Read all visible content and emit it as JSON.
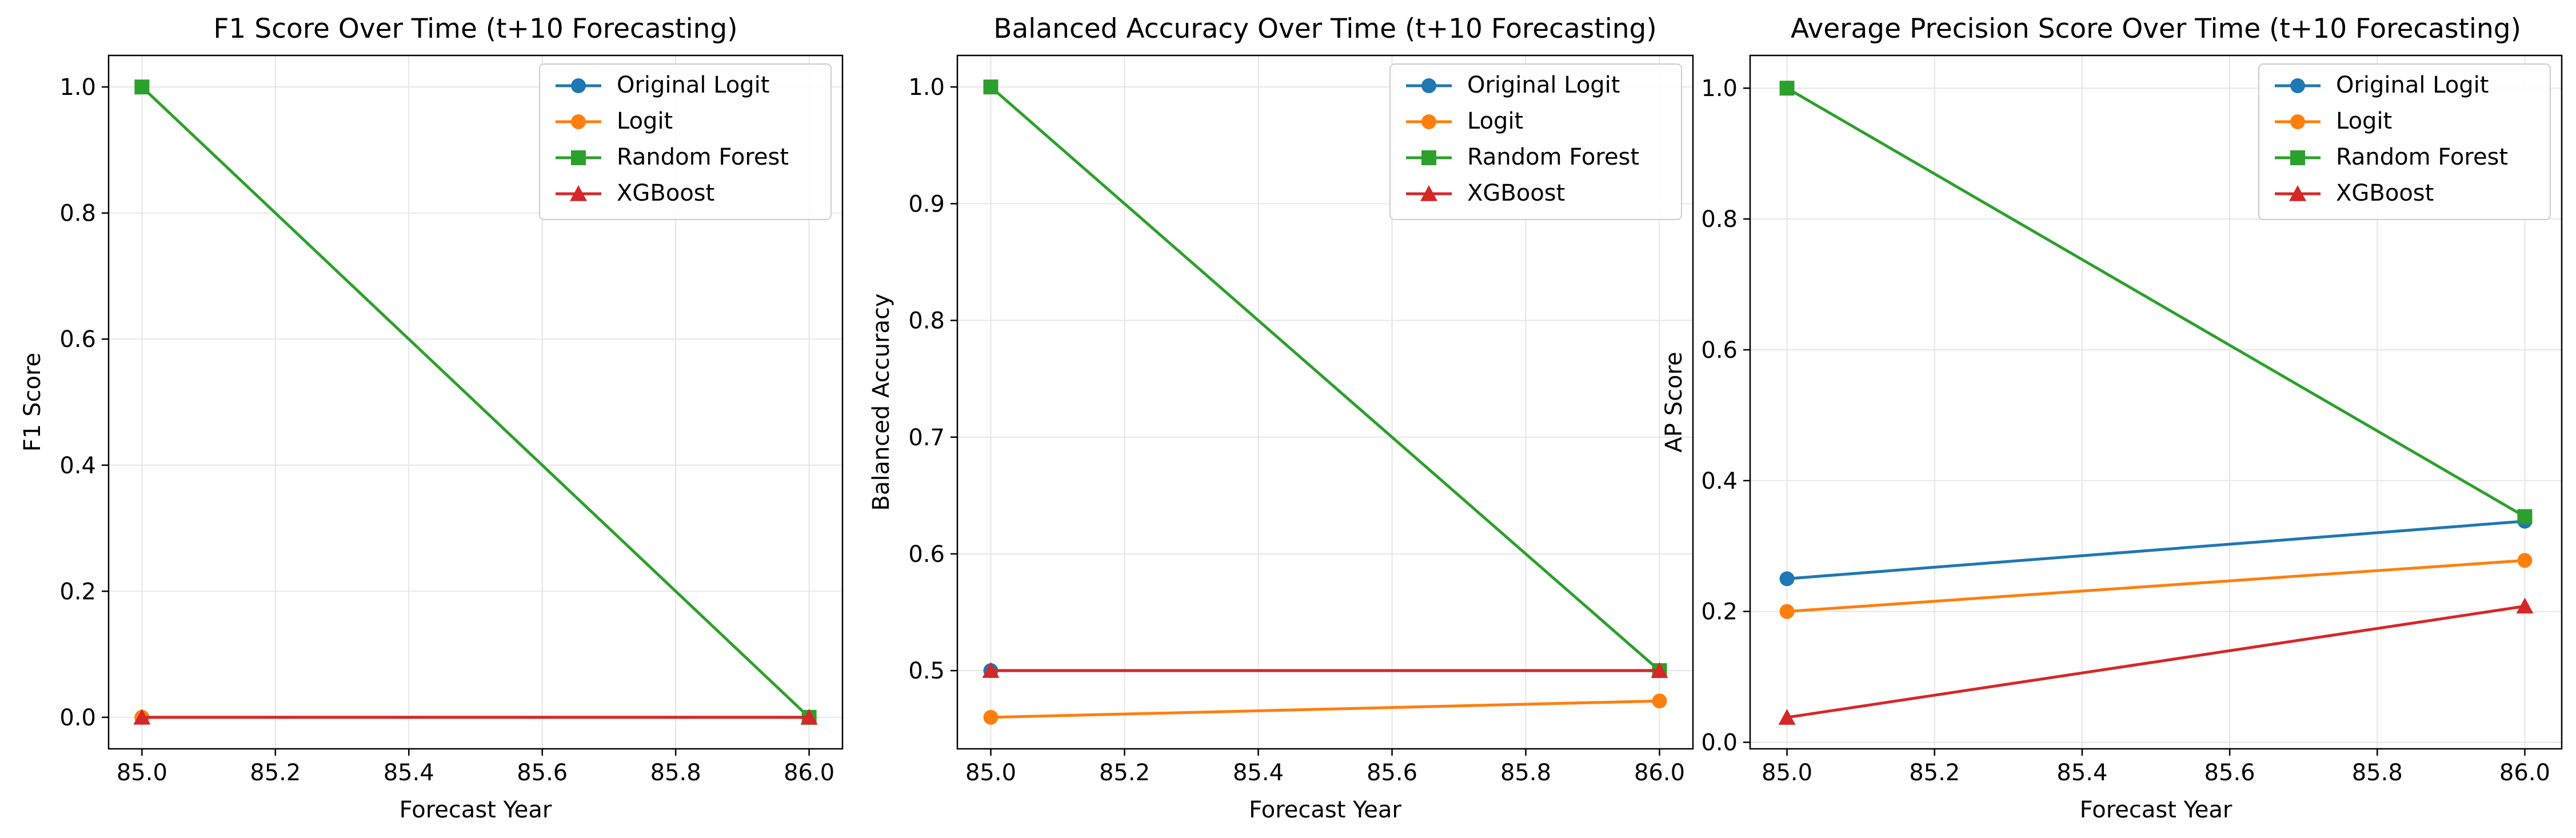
{
  "chart_data": [
    {
      "type": "line",
      "title": "F1 Score Over Time (t+10 Forecasting)",
      "xlabel": "Forecast Year",
      "ylabel": "F1 Score",
      "xlim": [
        84.95,
        86.05
      ],
      "ylim": [
        -0.05,
        1.05
      ],
      "xticks": [
        "85.0",
        "85.2",
        "85.4",
        "85.6",
        "85.8",
        "86.0"
      ],
      "yticks": [
        "0.0",
        "0.2",
        "0.4",
        "0.6",
        "0.8",
        "1.0"
      ],
      "grid": true,
      "legend_position": "top-right",
      "x": [
        85.0,
        86.0
      ],
      "series": [
        {
          "name": "Original Logit",
          "values": [
            0.0,
            0.0
          ],
          "color": "#1f77b4",
          "marker": "circle"
        },
        {
          "name": "Logit",
          "values": [
            0.0,
            0.0
          ],
          "color": "#ff7f0e",
          "marker": "circle"
        },
        {
          "name": "Random Forest",
          "values": [
            1.0,
            0.0
          ],
          "color": "#2ca02c",
          "marker": "square"
        },
        {
          "name": "XGBoost",
          "values": [
            0.0,
            0.0
          ],
          "color": "#d62728",
          "marker": "triangle"
        }
      ]
    },
    {
      "type": "line",
      "title": "Balanced Accuracy Over Time (t+10 Forecasting)",
      "xlabel": "Forecast Year",
      "ylabel": "Balanced Accuracy",
      "xlim": [
        84.95,
        86.05
      ],
      "ylim": [
        0.433,
        1.027
      ],
      "xticks": [
        "85.0",
        "85.2",
        "85.4",
        "85.6",
        "85.8",
        "86.0"
      ],
      "yticks": [
        "0.5",
        "0.6",
        "0.7",
        "0.8",
        "0.9",
        "1.0"
      ],
      "grid": true,
      "legend_position": "top-right",
      "x": [
        85.0,
        86.0
      ],
      "series": [
        {
          "name": "Original Logit",
          "values": [
            0.5,
            0.5
          ],
          "color": "#1f77b4",
          "marker": "circle"
        },
        {
          "name": "Logit",
          "values": [
            0.46,
            0.474
          ],
          "color": "#ff7f0e",
          "marker": "circle"
        },
        {
          "name": "Random Forest",
          "values": [
            1.0,
            0.5
          ],
          "color": "#2ca02c",
          "marker": "square"
        },
        {
          "name": "XGBoost",
          "values": [
            0.5,
            0.5
          ],
          "color": "#d62728",
          "marker": "triangle"
        }
      ]
    },
    {
      "type": "line",
      "title": "Average Precision Score Over Time (t+10 Forecasting)",
      "xlabel": "Forecast Year",
      "ylabel": "AP Score",
      "xlim": [
        84.95,
        86.05
      ],
      "ylim": [
        -0.01,
        1.05
      ],
      "xticks": [
        "85.0",
        "85.2",
        "85.4",
        "85.6",
        "85.8",
        "86.0"
      ],
      "yticks": [
        "0.0",
        "0.2",
        "0.4",
        "0.6",
        "0.8",
        "1.0"
      ],
      "grid": true,
      "legend_position": "top-right",
      "x": [
        85.0,
        86.0
      ],
      "series": [
        {
          "name": "Original Logit",
          "values": [
            0.25,
            0.338
          ],
          "color": "#1f77b4",
          "marker": "circle"
        },
        {
          "name": "Logit",
          "values": [
            0.2,
            0.278
          ],
          "color": "#ff7f0e",
          "marker": "circle"
        },
        {
          "name": "Random Forest",
          "values": [
            1.0,
            0.345
          ],
          "color": "#2ca02c",
          "marker": "square"
        },
        {
          "name": "XGBoost",
          "values": [
            0.038,
            0.208
          ],
          "color": "#d62728",
          "marker": "triangle"
        }
      ]
    }
  ]
}
